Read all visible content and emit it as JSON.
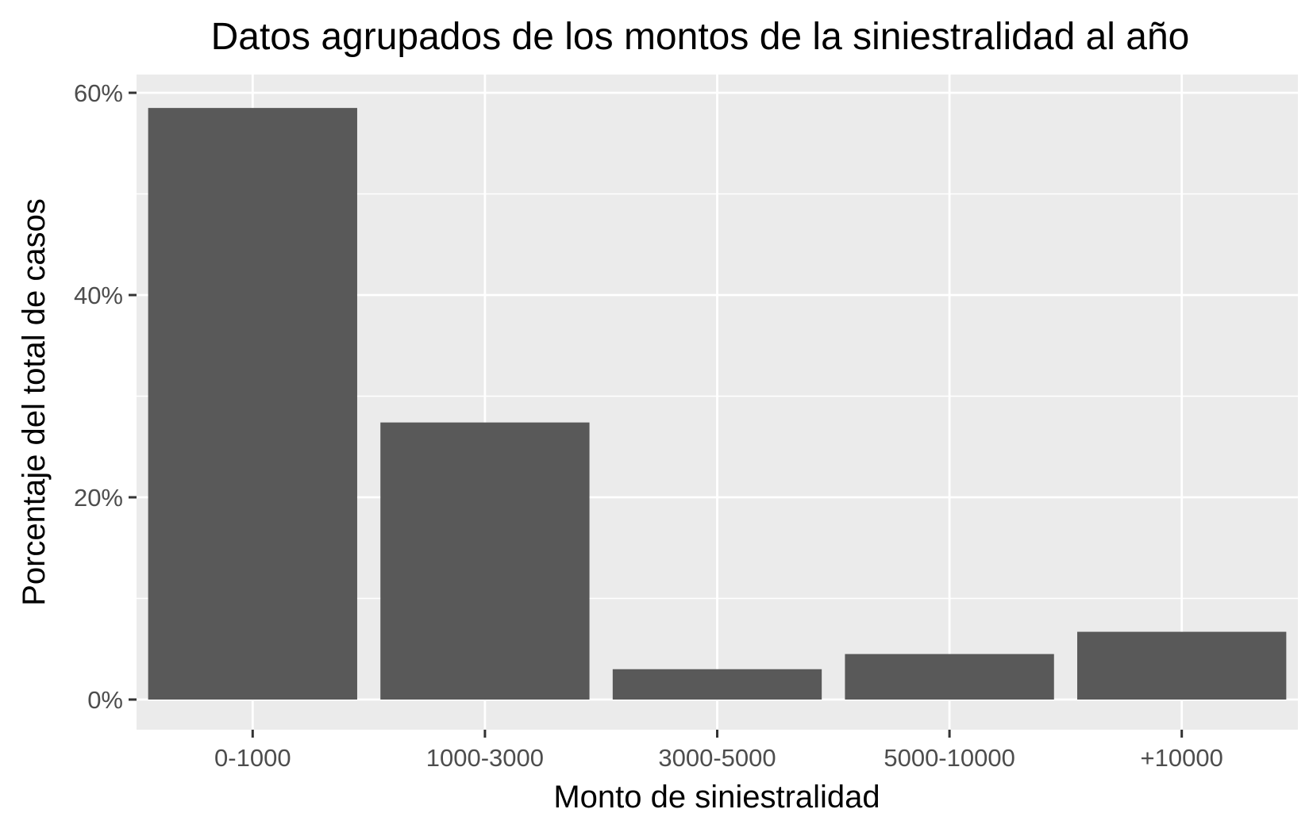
{
  "chart_data": {
    "type": "bar",
    "title": "Datos agrupados de los montos de la siniestralidad al año",
    "xlabel": "Monto de siniestralidad",
    "ylabel": "Porcentaje del total de casos",
    "categories": [
      "0-1000",
      "1000-3000",
      "3000-5000",
      "5000-10000",
      "+10000"
    ],
    "values": [
      58.5,
      27.4,
      3.0,
      4.5,
      6.7
    ],
    "ylim": [
      0,
      60
    ],
    "y_ticks": [
      0,
      20,
      40,
      60
    ],
    "y_tick_labels": [
      "0%",
      "20%",
      "40%",
      "60%"
    ],
    "grid": true,
    "colors": {
      "panel": "#ebebeb",
      "grid": "#ffffff",
      "bar": "#595959",
      "tick": "#333333",
      "tick_text": "#4d4d4d"
    }
  }
}
